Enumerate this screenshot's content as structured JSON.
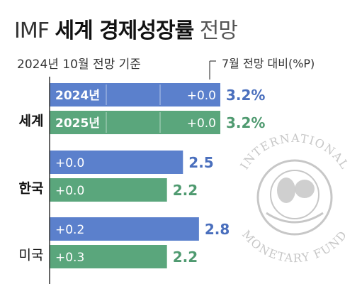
{
  "title": {
    "prefix": "IMF",
    "bold": "세계 경제성장률",
    "suffix": "전망"
  },
  "subtitle": "2024년 10월 전망 기준",
  "change_header": "7월 전망 대비(%P)",
  "colors": {
    "bar_2024": "#5b80cc",
    "bar_2025": "#5aa67c",
    "value_2024": "#4a6fbd",
    "value_2025": "#4f9a70",
    "axis": "#333333",
    "emblem": "#c7c7c7"
  },
  "emblem": {
    "text_top": "INTERNATIONAL",
    "text_bottom": "MONETARY FUND"
  },
  "chart_data": {
    "type": "bar",
    "orientation": "horizontal",
    "categories": [
      "세계",
      "한국",
      "미국"
    ],
    "series": [
      {
        "name": "2024년",
        "values": [
          3.2,
          2.5,
          2.8
        ],
        "changes": [
          "+0.0",
          "+0.0",
          "+0.2"
        ],
        "value_labels": [
          "3.2%",
          "2.5",
          "2.8"
        ]
      },
      {
        "name": "2025년",
        "values": [
          3.2,
          2.2,
          2.2
        ],
        "changes": [
          "+0.0",
          "+0.0",
          "+0.3"
        ],
        "value_labels": [
          "3.2%",
          "2.2",
          "2.2"
        ]
      }
    ],
    "unit": "%",
    "legend": "inline series labels in the first group's bars"
  }
}
